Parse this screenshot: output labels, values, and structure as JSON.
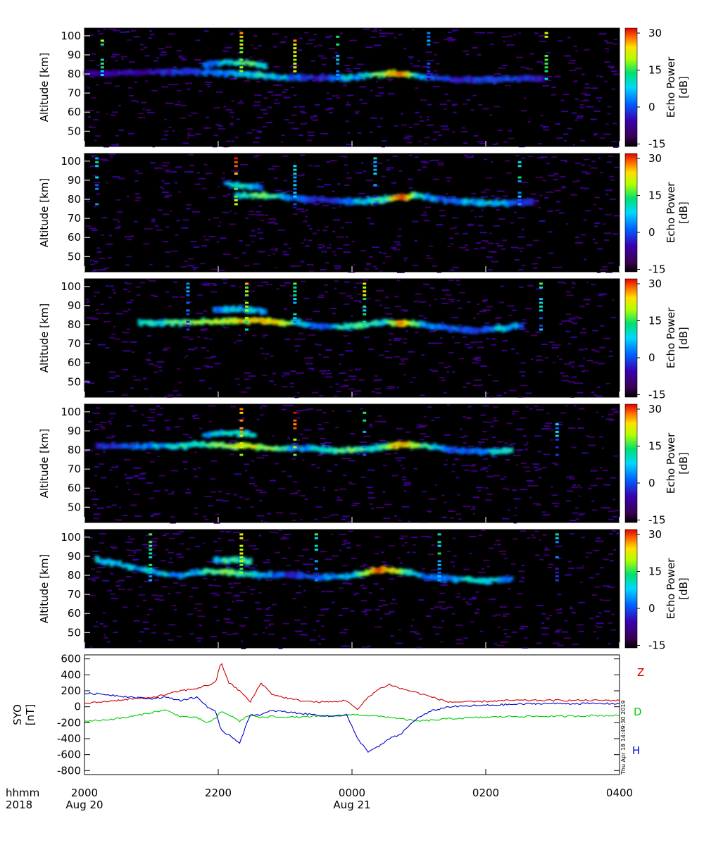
{
  "chart_data": [
    {
      "type": "heatmap",
      "panel": 1,
      "ylabel": "Altitude [km]",
      "yticks": [
        50,
        60,
        70,
        80,
        90,
        100
      ],
      "ylim": [
        42,
        104
      ],
      "colorbar_label": "Echo Power\n[dB]",
      "colorbar_ticks": [
        -15,
        0,
        15,
        30
      ],
      "crange": [
        -16,
        32
      ],
      "echo_layers": [
        {
          "t": [
            0.0,
            0.12,
            0.22,
            0.29,
            0.33,
            0.38,
            0.43,
            0.48,
            0.52,
            0.56,
            0.59,
            0.62,
            0.66,
            0.7,
            0.78,
            0.86
          ],
          "alt": [
            80,
            81,
            81,
            80,
            79,
            78,
            78,
            78,
            79,
            80,
            80,
            79,
            78,
            77,
            77,
            78
          ],
          "db": [
            -8,
            -5,
            0,
            5,
            8,
            2,
            -4,
            3,
            8,
            16,
            28,
            4,
            -2,
            -5,
            0,
            -6
          ]
        },
        {
          "t": [
            0.22,
            0.26,
            0.3,
            0.34
          ],
          "alt": [
            85,
            86,
            86,
            84
          ],
          "db": [
            0,
            6,
            12,
            4
          ]
        }
      ],
      "spikes": [
        {
          "t": 0.03,
          "db": 18
        },
        {
          "t": 0.29,
          "db": 24
        },
        {
          "t": 0.39,
          "db": 26
        },
        {
          "t": 0.47,
          "db": 14
        },
        {
          "t": 0.86,
          "db": 20
        },
        {
          "t": 0.64,
          "db": 5
        }
      ]
    },
    {
      "type": "heatmap",
      "panel": 2,
      "ylabel": "Altitude [km]",
      "yticks": [
        50,
        60,
        70,
        80,
        90,
        100
      ],
      "ylim": [
        42,
        104
      ],
      "colorbar_label": "Echo Power\n[dB]",
      "colorbar_ticks": [
        -15,
        0,
        15,
        30
      ],
      "crange": [
        -16,
        32
      ],
      "echo_layers": [
        {
          "t": [
            0.28,
            0.33,
            0.38,
            0.43,
            0.48,
            0.52,
            0.56,
            0.59,
            0.62,
            0.66,
            0.7,
            0.75,
            0.8,
            0.84
          ],
          "alt": [
            82,
            82,
            81,
            80,
            79,
            79,
            80,
            81,
            82,
            80,
            79,
            78,
            78,
            79
          ],
          "db": [
            6,
            12,
            3,
            -4,
            0,
            6,
            10,
            30,
            8,
            0,
            3,
            5,
            2,
            -6
          ]
        },
        {
          "t": [
            0.26,
            0.3,
            0.33
          ],
          "alt": [
            88,
            87,
            86
          ],
          "db": [
            4,
            8,
            2
          ]
        }
      ],
      "spikes": [
        {
          "t": 0.02,
          "db": 10
        },
        {
          "t": 0.28,
          "db": 28
        },
        {
          "t": 0.39,
          "db": 12
        },
        {
          "t": 0.54,
          "db": 8
        },
        {
          "t": 0.81,
          "db": 14
        }
      ]
    },
    {
      "type": "heatmap",
      "panel": 3,
      "ylabel": "Altitude [km]",
      "yticks": [
        50,
        60,
        70,
        80,
        90,
        100
      ],
      "ylim": [
        42,
        104
      ],
      "colorbar_label": "Echo Power\n[dB]",
      "colorbar_ticks": [
        -15,
        0,
        15,
        30
      ],
      "crange": [
        -16,
        32
      ],
      "echo_layers": [
        {
          "t": [
            0.1,
            0.13,
            0.3,
            0.33,
            0.37,
            0.4,
            0.44,
            0.48,
            0.52,
            0.56,
            0.59,
            0.63,
            0.68,
            0.73,
            0.78,
            0.82
          ],
          "alt": [
            81,
            81,
            82,
            82,
            81,
            81,
            79,
            79,
            80,
            81,
            81,
            80,
            78,
            77,
            78,
            80
          ],
          "db": [
            6,
            8,
            20,
            22,
            18,
            4,
            0,
            8,
            10,
            6,
            26,
            4,
            2,
            -2,
            6,
            0
          ]
        },
        {
          "t": [
            0.24,
            0.29,
            0.34
          ],
          "alt": [
            88,
            88,
            87
          ],
          "db": [
            2,
            6,
            4
          ]
        }
      ],
      "spikes": [
        {
          "t": 0.19,
          "db": 6
        },
        {
          "t": 0.3,
          "db": 22
        },
        {
          "t": 0.39,
          "db": 14
        },
        {
          "t": 0.52,
          "db": 20
        },
        {
          "t": 0.85,
          "db": 12
        }
      ]
    },
    {
      "type": "heatmap",
      "panel": 4,
      "ylabel": "Altitude [km]",
      "yticks": [
        50,
        60,
        70,
        80,
        90,
        100
      ],
      "ylim": [
        42,
        104
      ],
      "colorbar_label": "Echo Power\n[dB]",
      "colorbar_ticks": [
        -15,
        0,
        15,
        30
      ],
      "crange": [
        -16,
        32
      ],
      "echo_layers": [
        {
          "t": [
            0.02,
            0.1,
            0.16,
            0.22,
            0.27,
            0.31,
            0.35,
            0.4,
            0.46,
            0.5,
            0.54,
            0.59,
            0.64,
            0.69,
            0.74,
            0.8
          ],
          "alt": [
            82,
            82,
            82,
            83,
            82,
            82,
            81,
            81,
            80,
            80,
            81,
            83,
            82,
            80,
            79,
            80
          ],
          "db": [
            -4,
            2,
            6,
            10,
            16,
            20,
            12,
            2,
            8,
            12,
            6,
            24,
            8,
            0,
            2,
            10
          ]
        },
        {
          "t": [
            0.22,
            0.27,
            0.32
          ],
          "alt": [
            88,
            89,
            88
          ],
          "db": [
            4,
            8,
            6
          ]
        }
      ],
      "spikes": [
        {
          "t": 0.29,
          "db": 28
        },
        {
          "t": 0.39,
          "db": 30
        },
        {
          "t": 0.52,
          "db": 14
        },
        {
          "t": 0.88,
          "db": 10
        }
      ]
    },
    {
      "type": "heatmap",
      "panel": 5,
      "ylabel": "Altitude [km]",
      "yticks": [
        50,
        60,
        70,
        80,
        90,
        100
      ],
      "ylim": [
        42,
        104
      ],
      "colorbar_label": "Echo Power\n[dB]",
      "colorbar_ticks": [
        -15,
        0,
        15,
        30
      ],
      "crange": [
        -16,
        32
      ],
      "echo_layers": [
        {
          "t": [
            0.02,
            0.06,
            0.14,
            0.18,
            0.22,
            0.26,
            0.29,
            0.33,
            0.38,
            0.44,
            0.5,
            0.55,
            0.6,
            0.64,
            0.7,
            0.74,
            0.8
          ],
          "alt": [
            88,
            86,
            81,
            80,
            82,
            82,
            81,
            80,
            80,
            79,
            80,
            83,
            82,
            79,
            78,
            77,
            78
          ],
          "db": [
            8,
            4,
            6,
            4,
            8,
            14,
            10,
            4,
            -2,
            2,
            6,
            28,
            10,
            0,
            4,
            10,
            0
          ]
        },
        {
          "t": [
            0.24,
            0.28,
            0.31
          ],
          "alt": [
            88,
            88,
            87
          ],
          "db": [
            6,
            10,
            8
          ]
        }
      ],
      "spikes": [
        {
          "t": 0.12,
          "db": 18
        },
        {
          "t": 0.29,
          "db": 26
        },
        {
          "t": 0.43,
          "db": 12
        },
        {
          "t": 0.66,
          "db": 14
        },
        {
          "t": 0.88,
          "db": 8
        }
      ]
    },
    {
      "type": "line",
      "panel": 6,
      "ylabel": "SYO\n[nT]",
      "ylim": [
        -850,
        650
      ],
      "yticks": [
        600,
        400,
        200,
        0,
        -200,
        -400,
        -600,
        -800
      ],
      "x": [
        0,
        0.03,
        0.06,
        0.09,
        0.12,
        0.15,
        0.18,
        0.21,
        0.23,
        0.245,
        0.255,
        0.27,
        0.29,
        0.31,
        0.33,
        0.35,
        0.37,
        0.4,
        0.43,
        0.46,
        0.49,
        0.51,
        0.53,
        0.55,
        0.57,
        0.59,
        0.62,
        0.65,
        0.68,
        0.72,
        0.76,
        0.8,
        0.85,
        0.9,
        0.95,
        1.0
      ],
      "series": [
        {
          "name": "Z",
          "color": "#cc0000",
          "values": [
            40,
            60,
            80,
            100,
            110,
            150,
            200,
            230,
            270,
            300,
            560,
            300,
            200,
            60,
            300,
            160,
            120,
            80,
            60,
            60,
            80,
            -40,
            120,
            220,
            280,
            230,
            180,
            120,
            60,
            60,
            70,
            80,
            80,
            80,
            80,
            80
          ]
        },
        {
          "name": "D",
          "color": "#00cc00",
          "values": [
            -180,
            -170,
            -150,
            -120,
            -80,
            -40,
            -120,
            -140,
            -200,
            -150,
            -60,
            -100,
            -180,
            -100,
            -140,
            -120,
            -130,
            -130,
            -120,
            -120,
            -100,
            -100,
            -110,
            -120,
            -130,
            -150,
            -180,
            -170,
            -150,
            -140,
            -130,
            -120,
            -120,
            -120,
            -110,
            -110
          ]
        },
        {
          "name": "H",
          "color": "#0000cc",
          "values": [
            170,
            160,
            140,
            120,
            100,
            120,
            80,
            120,
            0,
            -60,
            -300,
            -350,
            -450,
            -100,
            -100,
            -50,
            -60,
            -80,
            -100,
            -120,
            -100,
            -400,
            -560,
            -500,
            -400,
            -350,
            -150,
            -50,
            0,
            10,
            20,
            30,
            40,
            40,
            40,
            40
          ]
        }
      ],
      "right_labels": [
        "Z",
        "D",
        "H"
      ]
    }
  ],
  "time_axis": {
    "row_label_top": "hhmm",
    "row_label_bottom": "2018",
    "ticks": [
      {
        "label": "2000",
        "date": "Aug 20",
        "frac": 0.0
      },
      {
        "label": "2200",
        "date": "",
        "frac": 0.25
      },
      {
        "label": "0000",
        "date": "Aug 21",
        "frac": 0.5
      },
      {
        "label": "0200",
        "date": "",
        "frac": 0.75
      },
      {
        "label": "0400",
        "date": "",
        "frac": 1.0
      }
    ],
    "xlim": [
      "2018-08-20 20:00",
      "2018-08-21 04:00"
    ]
  },
  "stamp": "Thu Apr 18 14:49:30 2019"
}
